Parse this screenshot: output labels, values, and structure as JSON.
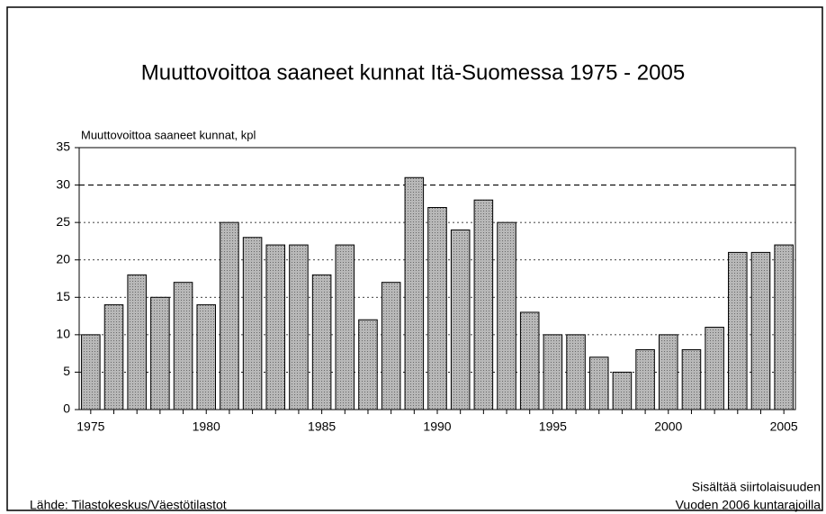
{
  "chart_data": {
    "type": "bar",
    "title": "Muuttovoittoa saaneet kunnat Itä-Suomessa 1975 - 2005",
    "y_axis_label": "Muuttovoittoa saaneet kunnat, kpl",
    "source": "Lähde: Tilastokeskus/Väestötilastot",
    "notes": [
      "Sisältää siirtolaisuuden",
      "Vuoden 2006 kuntarajoilla"
    ],
    "categories": [
      1975,
      null,
      null,
      null,
      null,
      1980,
      null,
      null,
      null,
      null,
      1985,
      null,
      null,
      null,
      null,
      1990,
      null,
      null,
      null,
      null,
      1995,
      null,
      null,
      null,
      null,
      2000,
      null,
      null,
      null,
      null,
      2005
    ],
    "values": [
      10,
      14,
      18,
      15,
      17,
      14,
      25,
      23,
      22,
      22,
      18,
      22,
      12,
      17,
      31,
      27,
      24,
      28,
      25,
      13,
      10,
      10,
      7,
      5,
      8,
      10,
      8,
      11,
      21,
      21,
      22
    ],
    "color": "#a6a6a6",
    "ylim": [
      0,
      35
    ],
    "yticks": [
      0,
      5,
      10,
      15,
      20,
      25,
      30,
      35
    ],
    "grid": true
  }
}
